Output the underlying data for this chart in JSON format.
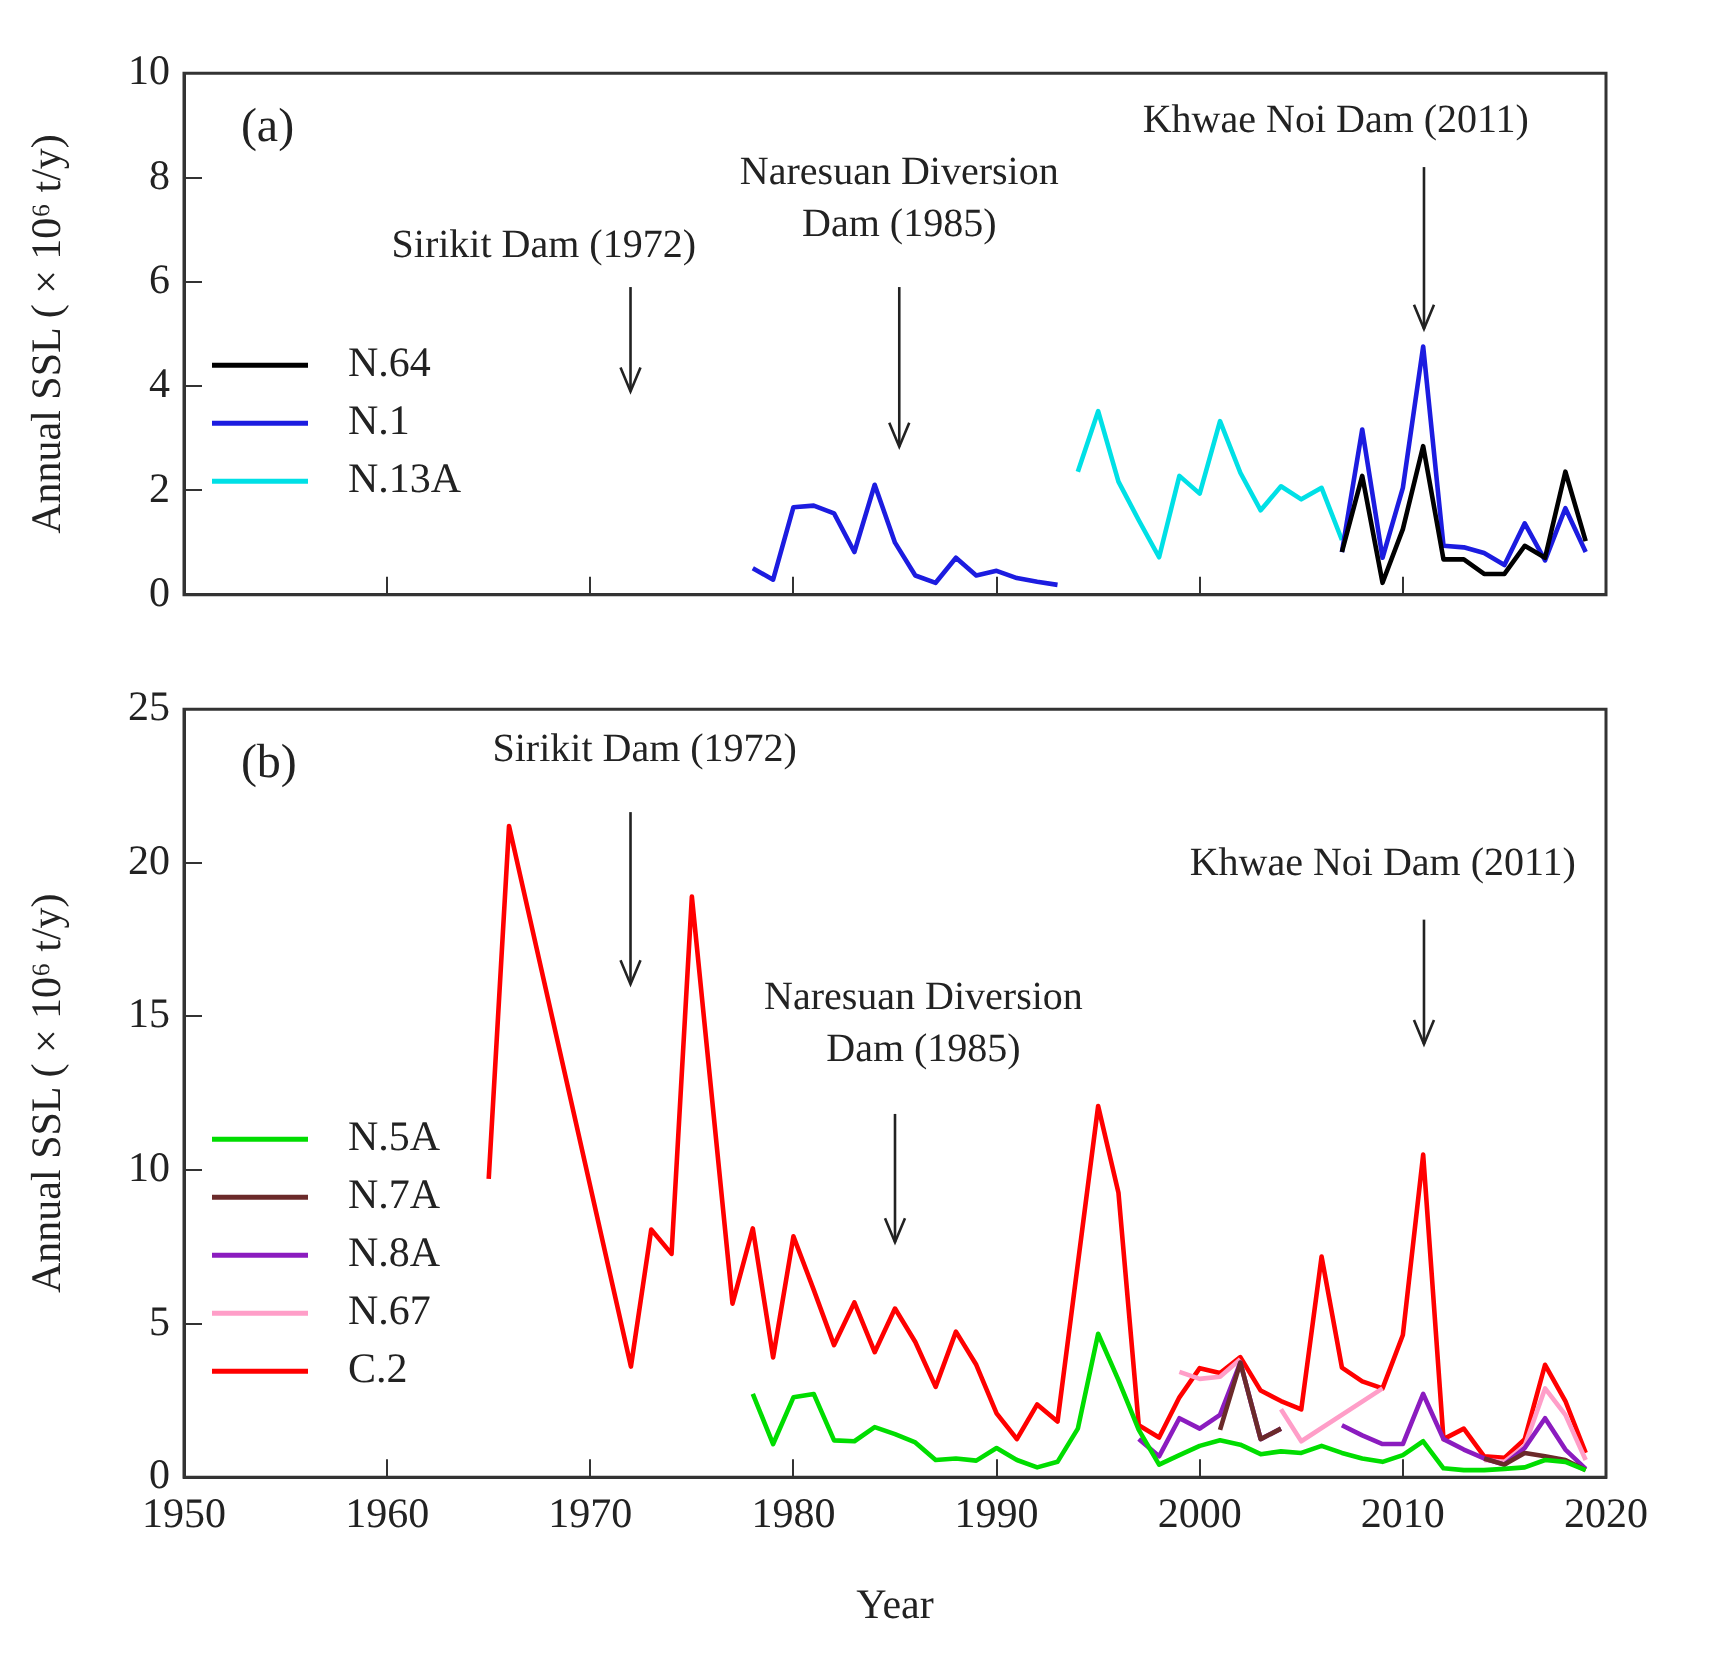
{
  "chart_data": [
    {
      "type": "line",
      "ylabel": "Annual SSL ( × 10⁶ t/y)",
      "xlim": [
        1950,
        2020
      ],
      "xticks": [
        1950,
        1960,
        1970,
        1980,
        1990,
        2000,
        2010,
        2020
      ],
      "ylim": [
        0,
        10
      ],
      "yticks": [
        0,
        2,
        4,
        6,
        8,
        10
      ],
      "tick_labels": "y",
      "legend": "left",
      "marker": "none",
      "grid": false,
      "annotations": [
        "(a)",
        "Sirikit Dam (1972)",
        "Naresuan Diversion Dam (1985)",
        "Khwae Noi Dam (2011)"
      ],
      "series": [
        {
          "name": "N.64",
          "color": "#000000",
          "x": [
            2007,
            2008,
            2009,
            2010,
            2011,
            2012,
            2013,
            2014,
            2015,
            2016,
            2017,
            2018,
            2019
          ],
          "values": [
            0.82,
            2.28,
            0.23,
            1.26,
            2.85,
            0.68,
            0.68,
            0.4,
            0.4,
            0.94,
            0.71,
            2.36,
            1.03
          ]
        },
        {
          "name": "N.1",
          "color": "#1c1ce0",
          "x": [
            1978,
            1979,
            1980,
            1981,
            1982,
            1983,
            1984,
            1985,
            1986,
            1987,
            1988,
            1989,
            1990,
            1991,
            1992,
            1993,
            1994,
            2007,
            2008,
            2009,
            2010,
            2011,
            2012,
            2013,
            2014,
            2015,
            2016,
            2017,
            2018,
            2019
          ],
          "values": [
            0.51,
            0.29,
            1.68,
            1.71,
            1.56,
            0.82,
            2.11,
            1.0,
            0.37,
            0.23,
            0.71,
            0.37,
            0.46,
            0.32,
            0.25,
            0.19,
            null,
            0.82,
            3.17,
            0.71,
            2.05,
            4.76,
            0.94,
            0.91,
            0.8,
            0.57,
            1.37,
            0.66,
            1.66,
            0.82
          ]
        },
        {
          "name": "N.13A",
          "color": "#00e0e6",
          "x": [
            1994,
            1995,
            1996,
            1997,
            1998,
            1999,
            2000,
            2001,
            2002,
            2003,
            2004,
            2005,
            2006,
            2007
          ],
          "values": [
            2.36,
            3.52,
            2.17,
            1.43,
            0.72,
            2.28,
            1.94,
            3.33,
            2.34,
            1.62,
            2.08,
            1.83,
            2.05,
            1.05
          ]
        }
      ]
    },
    {
      "type": "line",
      "ylabel": "Annual SSL ( × 10⁶ t/y)",
      "xlabel": "Year",
      "xlim": [
        1950,
        2020
      ],
      "xticks": [
        1950,
        1960,
        1970,
        1980,
        1990,
        2000,
        2010,
        2020
      ],
      "ylim": [
        0,
        25
      ],
      "yticks": [
        0,
        5,
        10,
        15,
        20,
        25
      ],
      "legend": "left",
      "marker": "none",
      "grid": false,
      "annotations": [
        "(b)",
        "Sirikit Dam (1972)",
        "Naresuan Diversion Dam (1985)",
        "Khwae Noi Dam (2011)"
      ],
      "series": [
        {
          "name": "N.5A",
          "color": "#00dd00",
          "x": [
            1978,
            1979,
            1980,
            1981,
            1982,
            1983,
            1984,
            1985,
            1986,
            1987,
            1988,
            1989,
            1990,
            1991,
            1992,
            1993,
            1994,
            1995,
            1996,
            1997,
            1998,
            1999,
            2000,
            2001,
            2002,
            2003,
            2004,
            2005,
            2006,
            2007,
            2008,
            2009,
            2010,
            2011,
            2012,
            2013,
            2014,
            2015,
            2016,
            2017,
            2018,
            2019
          ],
          "values": [
            2.71,
            1.08,
            2.6,
            2.71,
            1.2,
            1.17,
            1.63,
            1.4,
            1.13,
            0.56,
            0.61,
            0.54,
            0.95,
            0.56,
            0.32,
            0.5,
            1.58,
            4.67,
            3.16,
            1.54,
            0.41,
            0.72,
            1.02,
            1.2,
            1.06,
            0.75,
            0.84,
            0.79,
            1.02,
            0.79,
            0.61,
            0.5,
            0.72,
            1.17,
            0.29,
            0.23,
            0.23,
            0.27,
            0.32,
            0.56,
            0.5,
            0.23
          ]
        },
        {
          "name": "N.7A",
          "color": "#6b2a2a",
          "x": [
            2001,
            2002,
            2003,
            2004,
            2005,
            2014,
            2015,
            2016,
            2017,
            2018,
            2019
          ],
          "values": [
            1.54,
            3.73,
            1.24,
            1.58,
            null,
            0.61,
            0.41,
            0.79,
            0.68,
            0.56,
            0.23
          ]
        },
        {
          "name": "N.8A",
          "color": "#8b1cbf",
          "x": [
            1997,
            1998,
            1999,
            2000,
            2001,
            2002,
            2003,
            2004,
            2005,
            2007,
            2008,
            2009,
            2010,
            2011,
            2012,
            2013,
            2014,
            2015,
            2016,
            2017,
            2018,
            2019
          ],
          "values": [
            1.24,
            0.68,
            1.92,
            1.58,
            2.03,
            3.73,
            1.24,
            1.58,
            null,
            1.69,
            1.36,
            1.08,
            1.08,
            2.71,
            1.24,
            0.9,
            0.61,
            0.41,
            0.95,
            1.92,
            0.9,
            0.27
          ]
        },
        {
          "name": "N.67",
          "color": "#ff9ec8",
          "x": [
            1999,
            2000,
            2001,
            2002,
            2003,
            2004,
            2005,
            2009,
            2010,
            2014,
            2015,
            2016,
            2017,
            2018,
            2019
          ],
          "values": [
            3.43,
            3.2,
            3.27,
            3.84,
            null,
            2.21,
            1.17,
            2.89,
            null,
            0.56,
            0.5,
            1.02,
            2.89,
            2.03,
            0.56
          ]
        },
        {
          "name": "C.2",
          "color": "#ff0000",
          "x": [
            1965,
            1966,
            1972,
            1973,
            1974,
            1975,
            1977,
            1978,
            1979,
            1980,
            1981,
            1982,
            1983,
            1984,
            1985,
            1986,
            1987,
            1988,
            1989,
            1990,
            1991,
            1992,
            1993,
            1995,
            1996,
            1997,
            1998,
            1999,
            2000,
            2001,
            2002,
            2003,
            2004,
            2005,
            2006,
            2007,
            2008,
            2009,
            2010,
            2011,
            2012,
            2013,
            2014,
            2015,
            2016,
            2017,
            2018,
            2019
          ],
          "values": [
            9.71,
            21.2,
            3.6,
            8.06,
            7.27,
            18.9,
            5.65,
            8.1,
            3.9,
            7.84,
            6.1,
            4.3,
            5.69,
            4.07,
            5.49,
            4.4,
            2.94,
            4.74,
            3.66,
            2.08,
            1.24,
            2.37,
            1.81,
            12.08,
            9.26,
            1.69,
            1.29,
            2.6,
            3.55,
            3.39,
            3.91,
            2.82,
            2.48,
            2.21,
            7.18,
            3.57,
            3.12,
            2.89,
            4.63,
            10.5,
            1.24,
            1.58,
            0.68,
            0.63,
            1.24,
            3.66,
            2.48,
            0.79
          ]
        }
      ]
    }
  ]
}
